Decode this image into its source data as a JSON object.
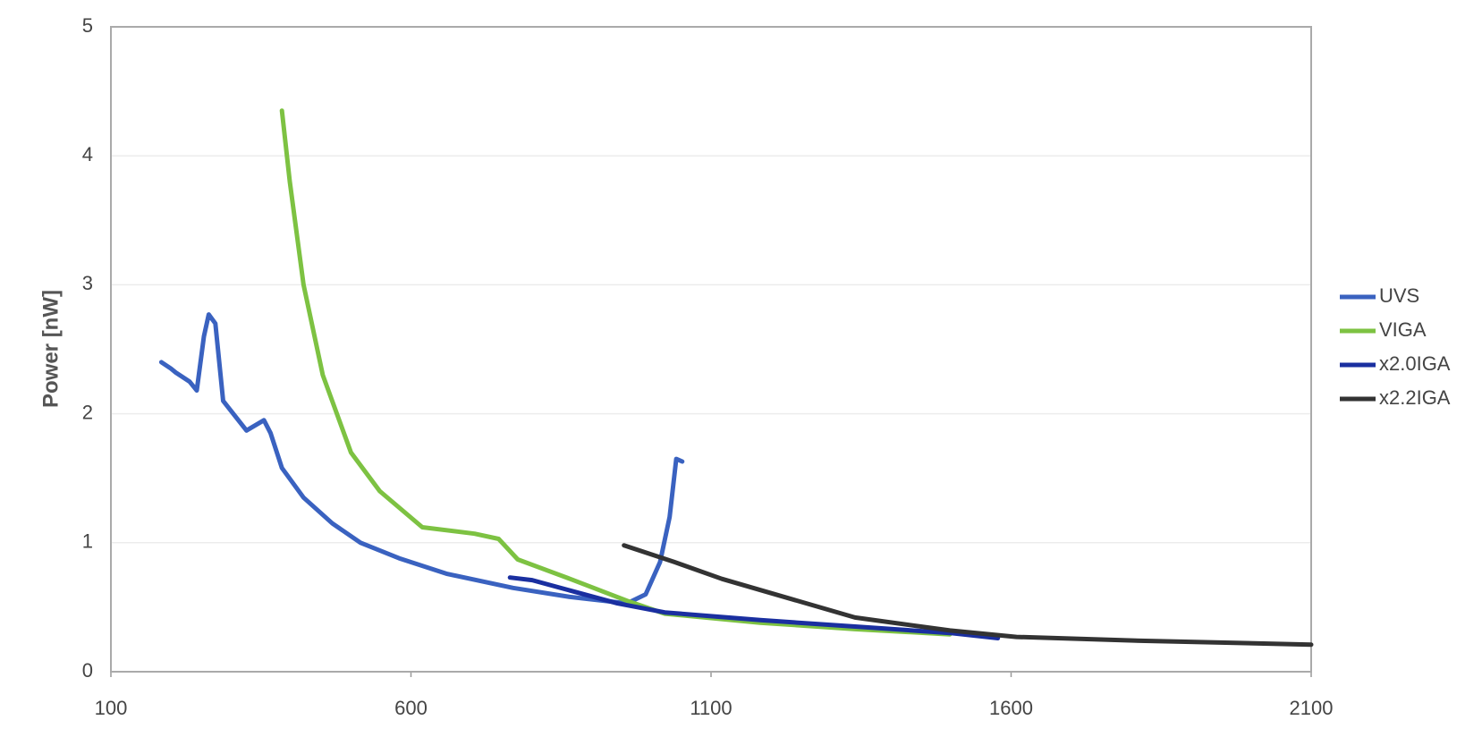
{
  "chart_data": {
    "type": "line",
    "ylabel": "Power [nW]",
    "xlim": [
      100,
      2100
    ],
    "xticks": [
      100,
      600,
      1100,
      1600,
      2100
    ],
    "ylim": [
      0,
      5
    ],
    "yticks": [
      0,
      1,
      2,
      3,
      4,
      5
    ],
    "grid": true,
    "legend": "right",
    "series": [
      {
        "name": "UVS",
        "color": "#3a62c0",
        "x": [
          184,
          200,
          208,
          231,
          243,
          255,
          263,
          274,
          287,
          326,
          355,
          366,
          385,
          421,
          469,
          516,
          580,
          659,
          770,
          865,
          960,
          991,
          1015,
          1031,
          1042,
          1052
        ],
        "values": [
          2.4,
          2.35,
          2.32,
          2.25,
          2.18,
          2.6,
          2.77,
          2.7,
          2.1,
          1.87,
          1.95,
          1.85,
          1.58,
          1.35,
          1.15,
          1.0,
          0.88,
          0.76,
          0.65,
          0.58,
          0.53,
          0.6,
          0.85,
          1.2,
          1.65,
          1.63
        ]
      },
      {
        "name": "VIGA",
        "color": "#7dc242",
        "x": [
          385,
          398,
          421,
          453,
          500,
          548,
          619,
          706,
          746,
          778,
          865,
          960,
          1023,
          1182,
          1340,
          1498
        ],
        "values": [
          4.35,
          3.8,
          3.0,
          2.3,
          1.7,
          1.4,
          1.12,
          1.07,
          1.03,
          0.87,
          0.72,
          0.55,
          0.45,
          0.38,
          0.33,
          0.29
        ]
      },
      {
        "name": "x2.0IGA",
        "color": "#1a2fa0",
        "x": [
          765,
          802,
          865,
          944,
          1023,
          1182,
          1340,
          1498,
          1578
        ],
        "values": [
          0.73,
          0.71,
          0.63,
          0.53,
          0.46,
          0.4,
          0.35,
          0.3,
          0.26
        ]
      },
      {
        "name": "x2.2IGA",
        "color": "#333333",
        "x": [
          955,
          1039,
          1118,
          1229,
          1340,
          1498,
          1609,
          1815,
          2100
        ],
        "values": [
          0.98,
          0.85,
          0.72,
          0.57,
          0.42,
          0.32,
          0.27,
          0.24,
          0.21
        ]
      }
    ]
  }
}
